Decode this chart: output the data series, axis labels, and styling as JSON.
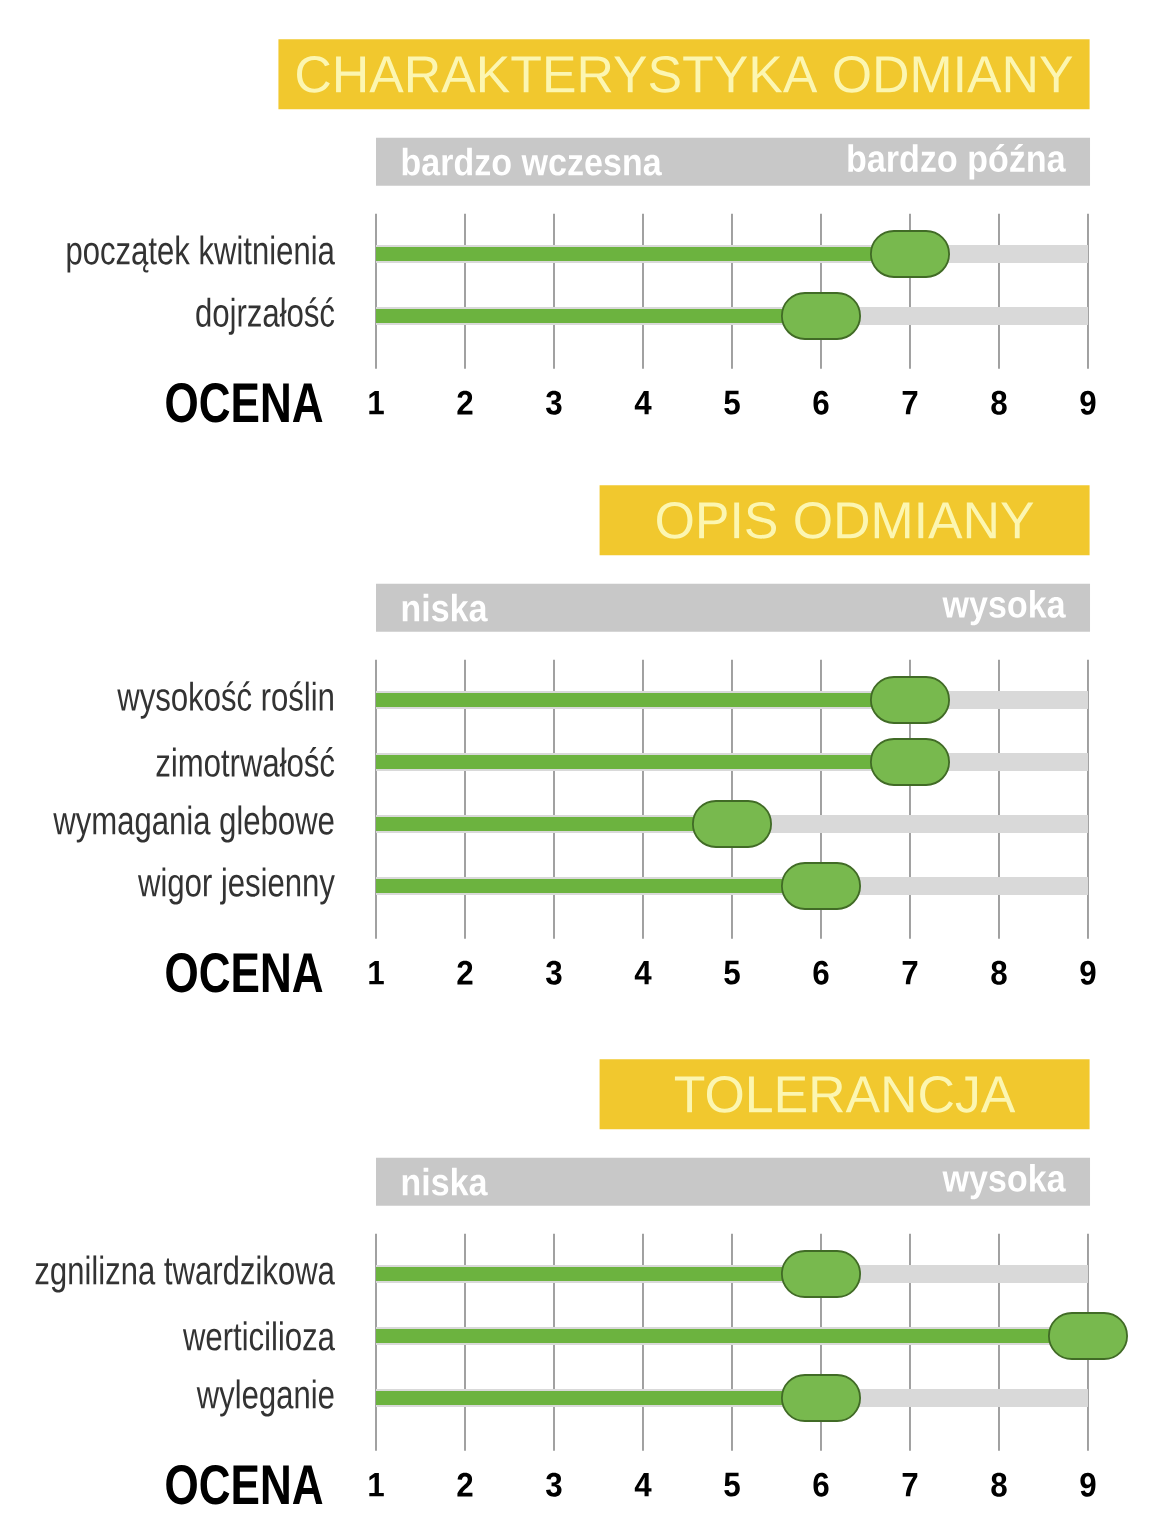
{
  "chart_data": [
    {
      "type": "lollipop",
      "orientation": "horizontal",
      "title": "CHARAKTERYSTYKA ODMIANY",
      "xlabel": "OCENA",
      "categories": [
        "początek kwitnienia",
        "dojrzałość"
      ],
      "values": [
        7,
        6
      ],
      "color": "#6cb33f",
      "xlim": [
        1,
        9
      ],
      "xticks": [
        1,
        2,
        3,
        4,
        5,
        6,
        7,
        8,
        9
      ],
      "grid": true,
      "marker": "square",
      "annotations": [
        "bardzo wczesna",
        "bardzo późna"
      ]
    },
    {
      "type": "lollipop",
      "orientation": "horizontal",
      "title": "OPIS ODMIANY",
      "xlabel": "OCENA",
      "categories": [
        "wysokość roślin",
        "zimotrwałość",
        "wymagania glebowe",
        "wigor jesienny"
      ],
      "values": [
        7,
        7,
        5,
        6
      ],
      "color": "#6cb33f",
      "xlim": [
        1,
        9
      ],
      "xticks": [
        1,
        2,
        3,
        4,
        5,
        6,
        7,
        8,
        9
      ],
      "grid": true,
      "marker": "square",
      "annotations": [
        "niska",
        "wysoka"
      ]
    },
    {
      "type": "lollipop",
      "orientation": "horizontal",
      "title": "TOLERANCJA",
      "xlabel": "OCENA",
      "categories": [
        "zgnilizna twardzikowa",
        "werticilioza",
        "wyleganie"
      ],
      "values": [
        6,
        9,
        6
      ],
      "color": "#6cb33f",
      "xlim": [
        1,
        9
      ],
      "xticks": [
        1,
        2,
        3,
        4,
        5,
        6,
        7,
        8,
        9
      ],
      "grid": true,
      "marker": "square",
      "annotations": [
        "niska",
        "wysoka"
      ]
    }
  ]
}
